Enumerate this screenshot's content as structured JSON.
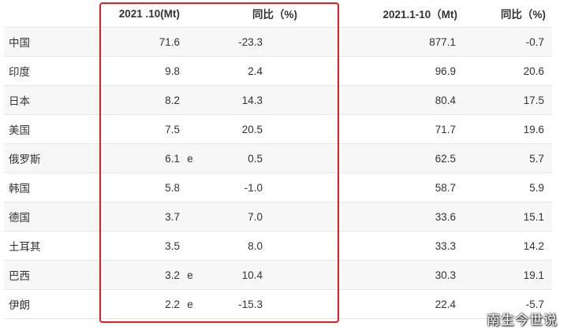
{
  "table": {
    "headers": {
      "country": "",
      "oct_2021": "2021 .10(Mt)",
      "flag": "",
      "oct_yoy": "同比（%)",
      "ytd_2021": "2021.1-10（Mt)",
      "ytd_yoy": "同比（%)"
    },
    "rows": [
      {
        "country": "中国",
        "oct": "71.6",
        "flag": "",
        "oct_yoy": "-23.3",
        "ytd": "877.1",
        "ytd_yoy": "-0.7"
      },
      {
        "country": "印度",
        "oct": "9.8",
        "flag": "",
        "oct_yoy": "2.4",
        "ytd": "96.9",
        "ytd_yoy": "20.6"
      },
      {
        "country": "日本",
        "oct": "8.2",
        "flag": "",
        "oct_yoy": "14.3",
        "ytd": "80.4",
        "ytd_yoy": "17.5"
      },
      {
        "country": "美国",
        "oct": "7.5",
        "flag": "",
        "oct_yoy": "20.5",
        "ytd": "71.7",
        "ytd_yoy": "19.6"
      },
      {
        "country": "俄罗斯",
        "oct": "6.1",
        "flag": "e",
        "oct_yoy": "0.5",
        "ytd": "62.5",
        "ytd_yoy": "5.7"
      },
      {
        "country": "韩国",
        "oct": "5.8",
        "flag": "",
        "oct_yoy": "-1.0",
        "ytd": "58.7",
        "ytd_yoy": "5.9"
      },
      {
        "country": "德国",
        "oct": "3.7",
        "flag": "",
        "oct_yoy": "7.0",
        "ytd": "33.6",
        "ytd_yoy": "15.1"
      },
      {
        "country": "土耳其",
        "oct": "3.5",
        "flag": "",
        "oct_yoy": "8.0",
        "ytd": "33.3",
        "ytd_yoy": "14.2"
      },
      {
        "country": "巴西",
        "oct": "3.2",
        "flag": "e",
        "oct_yoy": "10.4",
        "ytd": "30.3",
        "ytd_yoy": "19.1"
      },
      {
        "country": "伊朗",
        "oct": "2.2",
        "flag": "e",
        "oct_yoy": "-15.3",
        "ytd": "22.4",
        "ytd_yoy": "-5.7"
      }
    ]
  },
  "highlight": {
    "color": "#e02020"
  },
  "watermark": {
    "text": "南生今世说"
  }
}
